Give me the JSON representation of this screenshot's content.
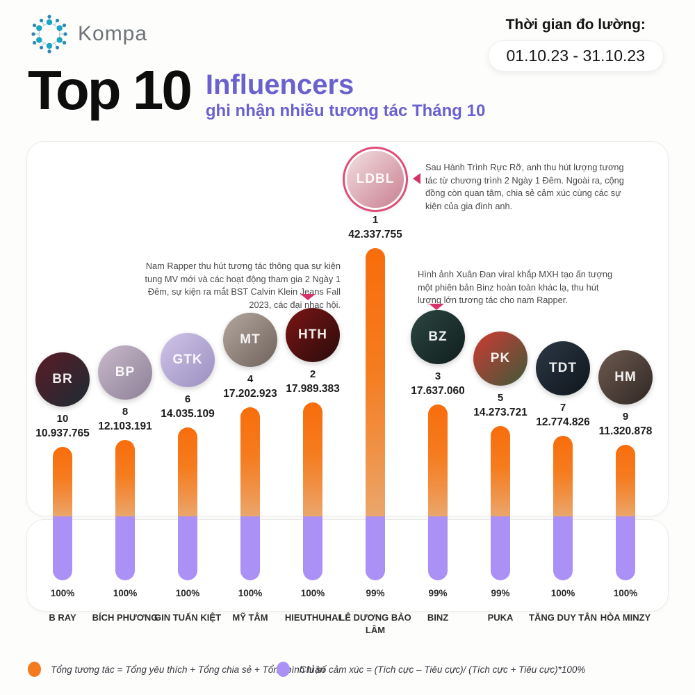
{
  "header": {
    "brand": "Kompa",
    "period_label": "Thời gian đo lường:",
    "period_value": "01.10.23 - 31.10.23"
  },
  "title": {
    "main": "Top 10",
    "highlight": "Influencers",
    "subtitle": "ghi nhận nhiều tương tác Tháng 10"
  },
  "chart_data": {
    "type": "bar",
    "title": "Top 10 Influencers ghi nhận nhiều tương tác Tháng 10",
    "ylim": [
      0,
      42337755
    ],
    "legend_position": "bottom",
    "categories": [
      "B RAY",
      "BÍCH PHƯƠNG",
      "GIN TUẤN KIỆT",
      "MỸ TÂM",
      "HIEUTHUHAI",
      "LÊ DƯƠNG BẢO LÂM",
      "BINZ",
      "PUKA",
      "TĂNG DUY TÂN",
      "HÒA MINZY"
    ],
    "series": [
      {
        "name": "Tổng tương tác",
        "color": "#f57c1e",
        "values": [
          10937765,
          12103191,
          14035109,
          17202923,
          17989383,
          42337755,
          17637060,
          14273721,
          12774826,
          11320878
        ],
        "value_labels": [
          "10.937.765",
          "12.103.191",
          "14.035.109",
          "17.202.923",
          "17.989.383",
          "42.337.755",
          "17.637.060",
          "14.273.721",
          "12.774.826",
          "11.320.878"
        ]
      },
      {
        "name": "Chỉ số cảm xúc",
        "color": "#ab90f5",
        "values": [
          100,
          100,
          100,
          100,
          100,
          99,
          99,
          99,
          100,
          100
        ],
        "value_labels": [
          "100%",
          "100%",
          "100%",
          "100%",
          "100%",
          "99%",
          "99%",
          "99%",
          "100%",
          "100%"
        ]
      }
    ],
    "ranks": [
      10,
      8,
      6,
      4,
      2,
      1,
      3,
      5,
      7,
      9
    ],
    "featured_index": 5,
    "avatar_initials": [
      "BR",
      "BP",
      "GTK",
      "MT",
      "HTH",
      "LDBL",
      "BZ",
      "PK",
      "TDT",
      "HM"
    ],
    "avatar_colors": [
      [
        "#5a1b26",
        "#1d2c34"
      ],
      [
        "#c9bacb",
        "#8d7f96"
      ],
      [
        "#d0c4e8",
        "#9a8fc0"
      ],
      [
        "#b3a79e",
        "#6f625c"
      ],
      [
        "#7c1515",
        "#2a0b0b"
      ],
      [
        "#f2dfe2",
        "#c97f8e"
      ],
      [
        "#2b4641",
        "#111e1d"
      ],
      [
        "#d03a33",
        "#3c5a3a"
      ],
      [
        "#2b3845",
        "#0f151c"
      ],
      [
        "#6e5a50",
        "#2f2723"
      ]
    ]
  },
  "annotations": [
    {
      "target": "LÊ DƯƠNG BẢO LÂM",
      "text": "Sau Hành Trình Rực Rỡ, anh thu hút lượng tương tác từ chương trình 2 Ngày 1 Đêm. Ngoài ra, cộng đồng còn quan tâm, chia sẻ cảm xúc cùng các sự kiện của gia đình anh."
    },
    {
      "target": "HIEUTHUHAI",
      "text": "Nam Rapper thu hút tương tác thông qua sự kiện tung MV mới và các hoạt động tham gia 2 Ngày 1 Đêm, sự kiện ra mắt BST Calvin Klein Jeans Fall 2023, các đại nhạc hội."
    },
    {
      "target": "BINZ",
      "text": "Hình ảnh Xuân Đan viral khắp MXH tạo ấn tượng một phiên bản Binz hoàn toàn khác lạ, thu hút lượng lớn tương tác cho nam Rapper."
    }
  ],
  "legend": [
    {
      "label": "Tổng tương tác = Tổng yêu thích + Tổng chia sẻ + Tổng bình luận",
      "color": "#f4791f"
    },
    {
      "label": "Chỉ số cảm xúc = (Tích cực – Tiêu cực)/ (Tích cực + Tiêu cực)*100%",
      "color": "#ab90f5"
    }
  ],
  "colors": {
    "accent_pink": "#d6336b",
    "title_purple": "#6a61ce",
    "bar_orange_top": "#f86d0c",
    "bar_orange_bottom": "#eaa76c",
    "bar_purple": "#ab90f5"
  }
}
